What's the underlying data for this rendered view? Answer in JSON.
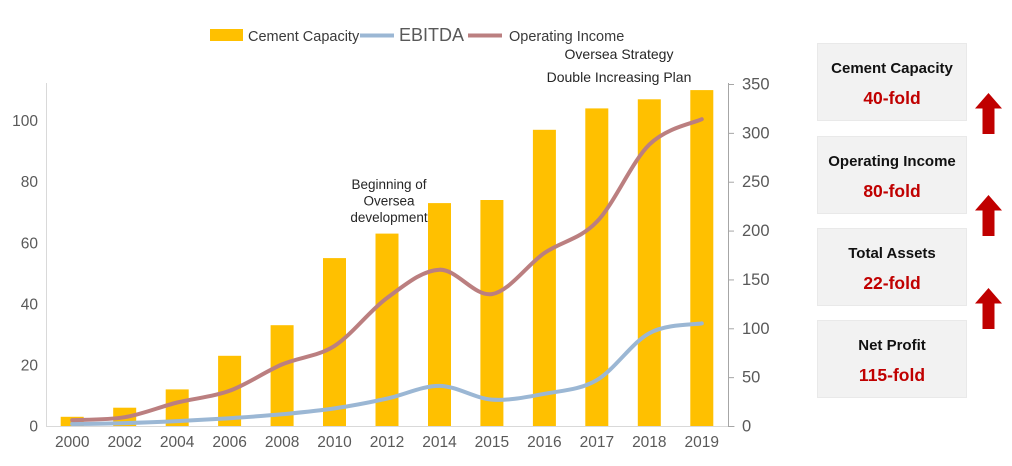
{
  "chart_data": {
    "type": "combo",
    "title": "",
    "xlabel": "",
    "ylabel_left": "",
    "ylabel_right": "",
    "grid": false,
    "legend_position": "top",
    "categories": [
      "2000",
      "2002",
      "2004",
      "2006",
      "2008",
      "2010",
      "2012",
      "2014",
      "2015",
      "2016",
      "2017",
      "2018",
      "2019"
    ],
    "series": [
      {
        "name": "Cement Capacity",
        "type": "bar",
        "axis": "left",
        "color": "#FFC000",
        "values": [
          3,
          6,
          12,
          23,
          33,
          55,
          63,
          73,
          74,
          97,
          104,
          107,
          110
        ]
      },
      {
        "name": "EBITDA",
        "type": "line",
        "axis": "right",
        "color": "#9BB7D4",
        "values": [
          2,
          3,
          5,
          8,
          12,
          18,
          28,
          41,
          27,
          33,
          47,
          95,
          105
        ]
      },
      {
        "name": "Operating Income",
        "type": "line",
        "axis": "right",
        "color": "#BB7F80",
        "values": [
          6,
          9,
          24,
          36,
          63,
          82,
          131,
          160,
          135,
          177,
          209,
          288,
          314
        ]
      }
    ],
    "left_axis": {
      "min": 0,
      "max": 112,
      "ticks": [
        0,
        20,
        40,
        60,
        80,
        100
      ]
    },
    "right_axis": {
      "min": 0,
      "max": 350,
      "ticks": [
        0,
        50,
        100,
        150,
        200,
        250,
        300,
        350
      ]
    },
    "annotations": [
      {
        "lines": [
          "Beginning of",
          "Oversea",
          "development"
        ],
        "anchor_category": "2012"
      },
      {
        "lines": [
          "Oversea Strategy",
          "Double Increasing Plan"
        ],
        "anchor_category": "2017"
      }
    ]
  },
  "panel": {
    "boxes": [
      {
        "title": "Cement Capacity",
        "value": "40-fold"
      },
      {
        "title": "Operating Income",
        "value": "80-fold"
      },
      {
        "title": "Total Assets",
        "value": "22-fold"
      },
      {
        "title": "Net Profit",
        "value": "115-fold"
      }
    ],
    "arrows": [
      "up-arrow-icon",
      "up-arrow-icon",
      "up-arrow-icon"
    ]
  },
  "colors": {
    "bar": "#FFC000",
    "ebitda_line": "#9BB7D4",
    "operating_income_line": "#BB7F80",
    "axis_text": "#595959",
    "annotation_text": "#262626",
    "panel_box_bg": "#F2F2F2",
    "accent_red": "#C00000"
  }
}
